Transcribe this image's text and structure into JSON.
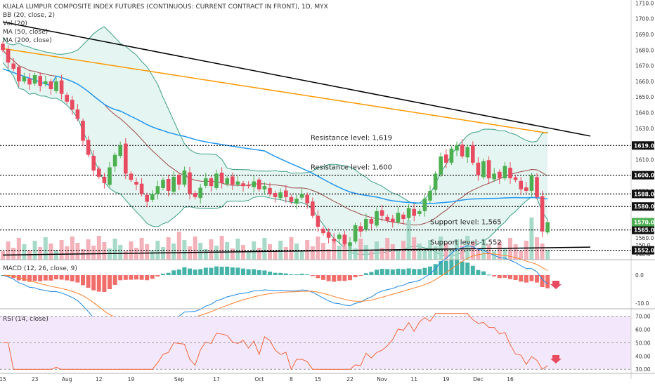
{
  "legend": {
    "title": "KUALA LUMPUR COMPOSITE INDEX FUTURES (CONTINUOUS: CURRENT CONTRACT IN FRONT), 1D, MYX",
    "bb": "BB (20, close, 2)",
    "vol": "Vol (20)",
    "ma50": "MA (50, close)",
    "ma200": "MA (200, close)",
    "macd": "MACD (12, 26, close, 9)",
    "rsi": "RSI (14, close)"
  },
  "colors": {
    "up": "#4caf50",
    "down": "#e84a5f",
    "ma50": "#2196f3",
    "ma200": "#ff9800",
    "bb_fill": "#e1f3ee",
    "bb_line": "#3a9f86",
    "bb_mid": "#9c4a4a",
    "rsi_line": "#f2673a",
    "rsi_bg": "#f3e8fb",
    "macd_line": "#1e88e5",
    "signal_line": "#ff7f2a",
    "level_badge": "#111111",
    "price_badge": "#4caf50",
    "last_badge": "#e84a5f"
  },
  "chart_data": {
    "type": "candlestick",
    "price_axis": {
      "min": 1546,
      "max": 1712,
      "ticks": [
        1710,
        1700,
        1690,
        1680,
        1670,
        1660,
        1650,
        1640,
        1630,
        1620,
        1610,
        1600,
        1590,
        1580,
        1570,
        1560
      ],
      "tick_labels": [
        "1710.0",
        "1700.0",
        "1690.0",
        "1680.0",
        "1670.0",
        "1660.0",
        "1650.0",
        "1640.0",
        "1630.0",
        "1620.0",
        "1610.0",
        "1600.0",
        "1590.0",
        "1580.0",
        "1570.0",
        "1560.0"
      ]
    },
    "x_axis_labels": [
      "15",
      "23",
      "Aug",
      "12",
      "19",
      "Sep",
      "17",
      "Oct",
      "8",
      "15",
      "22",
      "Nov",
      "11",
      "19",
      "Dec",
      "16"
    ],
    "x_axis_positions": [
      0,
      6,
      12,
      18,
      24,
      33,
      40,
      48,
      54,
      59,
      65,
      71,
      77,
      83,
      89,
      95
    ],
    "levels": [
      {
        "value": 1619,
        "label": "1619.0",
        "annotation": "Resistance level: 1,619"
      },
      {
        "value": 1600,
        "label": "1600.0",
        "annotation": "Resistance level: 1,600"
      },
      {
        "value": 1588,
        "label": "1588.0",
        "annotation": ""
      },
      {
        "value": 1580,
        "label": "1580.0",
        "annotation": ""
      },
      {
        "value": 1565,
        "label": "1565.0",
        "annotation": "Support level: 1,565"
      },
      {
        "value": 1552,
        "label": "1552.0",
        "annotation": "Support level: 1,552"
      }
    ],
    "current_price": {
      "value": 1570,
      "label": "1570.0"
    },
    "trendlines": [
      {
        "x1": 0,
        "y1": 1698,
        "x2": 110,
        "y2": 1625
      },
      {
        "x1": 0,
        "y1": 1549,
        "x2": 110,
        "y2": 1554
      }
    ],
    "closes": [
      1680,
      1672,
      1668,
      1660,
      1663,
      1658,
      1664,
      1657,
      1660,
      1655,
      1660,
      1652,
      1647,
      1642,
      1636,
      1622,
      1613,
      1603,
      1599,
      1595,
      1605,
      1613,
      1619,
      1601,
      1597,
      1594,
      1588,
      1583,
      1588,
      1593,
      1597,
      1590,
      1599,
      1594,
      1603,
      1588,
      1586,
      1592,
      1598,
      1593,
      1601,
      1595,
      1598,
      1594,
      1596,
      1593,
      1593,
      1596,
      1591,
      1593,
      1588,
      1586,
      1589,
      1586,
      1583,
      1585,
      1588,
      1582,
      1574,
      1567,
      1563,
      1560,
      1558,
      1562,
      1556,
      1557,
      1568,
      1564,
      1572,
      1569,
      1577,
      1574,
      1571,
      1570,
      1576,
      1572,
      1579,
      1574,
      1577,
      1585,
      1590,
      1601,
      1612,
      1608,
      1617,
      1619,
      1612,
      1618,
      1608,
      1600,
      1609,
      1598,
      1601,
      1598,
      1606,
      1598,
      1597,
      1591,
      1590,
      1600,
      1586,
      1564,
      1570
    ],
    "volume_axis": {
      "ticks": [
        150,
        140
      ]
    },
    "macd_axis": {
      "ticks": [
        0,
        -10
      ],
      "tick_labels": [
        "0.0",
        "-10.0"
      ],
      "min": -12,
      "max": 5
    },
    "rsi_axis": {
      "ticks": [
        70,
        60,
        50,
        40,
        30
      ],
      "tick_labels": [
        "70.00",
        "60.00",
        "50.00",
        "40.00",
        "30.00"
      ],
      "min": 28,
      "max": 74
    }
  }
}
